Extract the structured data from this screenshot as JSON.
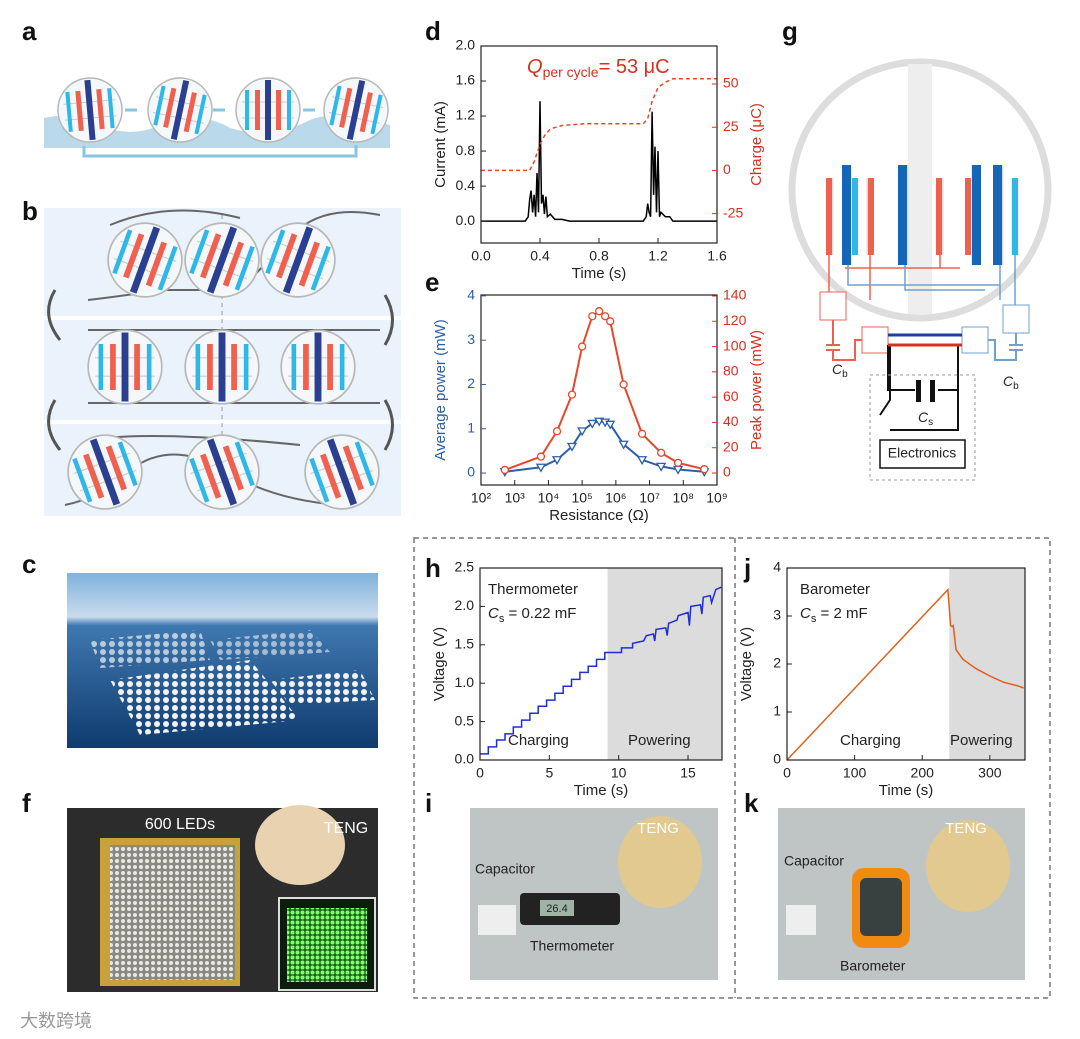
{
  "panel_labels": [
    "a",
    "b",
    "c",
    "d",
    "e",
    "f",
    "g",
    "h",
    "i",
    "j",
    "k"
  ],
  "panel_g": {
    "labels": [
      {
        "main": "C",
        "sub": "b"
      },
      {
        "main": "C",
        "sub": "b"
      },
      {
        "main": "C",
        "sub": "s"
      }
    ],
    "box": "Electronics"
  },
  "panel_f": {
    "leds": "600 LEDs",
    "teng": "TENG"
  },
  "panel_i": {
    "teng": "TENG",
    "capacitor": "Capacitor",
    "device": "Thermometer",
    "display": "26.4"
  },
  "panel_k": {
    "teng": "TENG",
    "capacitor": "Capacitor",
    "device": "Barometer"
  },
  "watermark": "大数跨境",
  "chart_data": [
    {
      "type": "line",
      "xlabel": "Time (s)",
      "ylabel": "Current (mA)",
      "y2label": "Charge (μC)",
      "y2_color": "#d7301f",
      "annotations": [
        {
          "text": "Q",
          "sub": "per cycle",
          "rest": "= 53 μC",
          "color": "#d7301f"
        }
      ],
      "xlim": [
        0,
        1.6
      ],
      "xticks": [
        {
          "value": 0,
          "label": "0.0"
        },
        0.4,
        0.8,
        1.2,
        1.6
      ],
      "ylim": [
        -0.25,
        2.0
      ],
      "yticks": [
        {
          "value": 0,
          "label": "0.0"
        },
        0.4,
        0.8,
        1.2,
        1.6,
        {
          "value": 2,
          "label": "2.0"
        }
      ],
      "y2lim": [
        -42,
        72
      ],
      "y2ticks": [
        -25,
        0,
        25,
        50
      ],
      "series": [
        {
          "color": "#000000",
          "x": [
            0,
            0.3,
            0.32,
            0.33,
            0.34,
            0.35,
            0.36,
            0.37,
            0.38,
            0.39,
            0.4,
            0.41,
            0.42,
            0.43,
            0.44,
            0.45,
            0.47,
            0.5,
            0.55,
            0.6,
            1.1,
            1.12,
            1.13,
            1.14,
            1.15,
            1.16,
            1.17,
            1.18,
            1.19,
            1.2,
            1.21,
            1.22,
            1.25,
            1.28,
            1.3,
            1.35,
            1.6
          ],
          "values": [
            0,
            0,
            0.05,
            0.25,
            0.35,
            0.1,
            0.3,
            0.05,
            0.55,
            0.1,
            1.37,
            0.2,
            0.3,
            0.08,
            0.28,
            0.05,
            0.08,
            0.02,
            0.02,
            0,
            0,
            0.05,
            0.2,
            0.1,
            0.05,
            1.25,
            0.3,
            0.85,
            0.1,
            0.8,
            0.05,
            0.1,
            0.05,
            0.05,
            0,
            0,
            0
          ]
        },
        {
          "color": "#e8462a",
          "axis": "y2",
          "line_style": "dashed",
          "x": [
            0,
            0.33,
            0.36,
            0.4,
            0.43,
            0.47,
            0.55,
            0.7,
            1.1,
            1.13,
            1.16,
            1.2,
            1.25,
            1.3,
            1.6
          ],
          "values": [
            0,
            0,
            5,
            15,
            20,
            24,
            26,
            27,
            27,
            30,
            40,
            48,
            51,
            53,
            53
          ]
        }
      ]
    },
    {
      "type": "line",
      "xscale": "log",
      "xlabel": "Resistance (Ω)",
      "ylabel": "Average power (mW)",
      "y2label": "Peak power (mW)",
      "y_color": "#2b5fa8",
      "y2_color": "#d7301f",
      "xlim": [
        100,
        1000000000
      ],
      "xticks": [
        {
          "value": 100,
          "label": "10²"
        },
        {
          "value": 1000,
          "label": "10³"
        },
        {
          "value": 10000,
          "label": "10⁴"
        },
        {
          "value": 100000,
          "label": "10⁵"
        },
        {
          "value": 1000000,
          "label": "10⁶"
        },
        {
          "value": 10000000,
          "label": "10⁷"
        },
        {
          "value": 100000000,
          "label": "10⁸"
        },
        {
          "value": 1000000000,
          "label": "10⁹"
        }
      ],
      "ylim": [
        -0.27,
        4.02
      ],
      "yticks": [
        0,
        1,
        2,
        3,
        4
      ],
      "y2lim": [
        -9.5,
        140.8
      ],
      "y2ticks": [
        0,
        20,
        40,
        60,
        80,
        100,
        120,
        140
      ],
      "series": [
        {
          "color": "#2b5fa8",
          "marker": "triangle",
          "x": [
            510,
            6000,
            18000,
            50000,
            100000,
            200000,
            320000,
            480000,
            680000,
            1700000,
            6000000,
            22000000,
            70000000,
            420000000
          ],
          "values": [
            0.03,
            0.13,
            0.3,
            0.6,
            0.95,
            1.12,
            1.17,
            1.15,
            1.1,
            0.65,
            0.3,
            0.15,
            0.08,
            0.03
          ]
        },
        {
          "color": "#e8462a",
          "marker": "circle",
          "axis": "y2",
          "x": [
            510,
            6000,
            18000,
            50000,
            100000,
            200000,
            320000,
            480000,
            680000,
            1700000,
            6000000,
            22000000,
            70000000,
            420000000
          ],
          "values": [
            2.4,
            13,
            33,
            62,
            100,
            124,
            128,
            124,
            120,
            70,
            31,
            16,
            8,
            3
          ]
        }
      ]
    },
    {
      "type": "line",
      "xlabel": "Time (s)",
      "ylabel": "Voltage (V)",
      "shade_x": [
        9.2,
        17.45
      ],
      "annotations": [
        {
          "text": "Thermometer"
        },
        {
          "text": "C",
          "sub": "s",
          "rest": " = 0.22 mF"
        },
        {
          "text": "Charging"
        },
        {
          "text": "Powering"
        }
      ],
      "xlim": [
        0,
        17.45
      ],
      "xticks": [
        0,
        5,
        10,
        15
      ],
      "ylim": [
        0,
        2.5
      ],
      "yticks": [
        {
          "value": 0,
          "label": "0.0"
        },
        0.5,
        {
          "value": 1,
          "label": "1.0"
        },
        1.5,
        {
          "value": 2,
          "label": "2.0"
        },
        2.5
      ],
      "series": [
        {
          "color": "#1f2fd0",
          "x": [
            0,
            0.6,
            0.6,
            1.2,
            1.2,
            1.8,
            1.8,
            2.4,
            2.4,
            3.0,
            3.0,
            3.6,
            3.6,
            4.2,
            4.2,
            4.8,
            4.8,
            5.4,
            5.4,
            6.0,
            6.0,
            6.6,
            6.6,
            7.2,
            7.2,
            7.8,
            7.8,
            8.4,
            8.4,
            9.0,
            9.0,
            9.6,
            10.2,
            10.2,
            11.0,
            11.0,
            11.8,
            12.0,
            12.5,
            12.6,
            12.7,
            13.4,
            13.5,
            13.6,
            14.2,
            14.3,
            15.0,
            15.1,
            15.2,
            15.9,
            16.0,
            16.1,
            16.6,
            16.7,
            17.0,
            17.4
          ],
          "values": [
            0.08,
            0.08,
            0.17,
            0.17,
            0.26,
            0.26,
            0.34,
            0.34,
            0.43,
            0.43,
            0.52,
            0.52,
            0.61,
            0.61,
            0.7,
            0.7,
            0.78,
            0.78,
            0.87,
            0.87,
            0.96,
            0.96,
            1.05,
            1.05,
            1.14,
            1.14,
            1.22,
            1.22,
            1.31,
            1.31,
            1.4,
            1.4,
            1.4,
            1.46,
            1.46,
            1.52,
            1.55,
            1.62,
            1.64,
            1.55,
            1.7,
            1.72,
            1.62,
            1.78,
            1.82,
            1.88,
            1.92,
            1.75,
            2.0,
            2.02,
            1.9,
            2.12,
            2.14,
            2.05,
            2.22,
            2.25
          ]
        }
      ]
    },
    {
      "type": "line",
      "xlabel": "Time (s)",
      "ylabel": "Voltage (V)",
      "shade_x": [
        240,
        352
      ],
      "annotations": [
        {
          "text": "Barometer"
        },
        {
          "text": "C",
          "sub": "s",
          "rest": " = 2 mF"
        },
        {
          "text": "Charging"
        },
        {
          "text": "Powering"
        }
      ],
      "xlim": [
        0,
        352
      ],
      "xticks": [
        0,
        100,
        200,
        300
      ],
      "ylim": [
        0,
        4
      ],
      "yticks": [
        0,
        1,
        2,
        3,
        4
      ],
      "series": [
        {
          "color": "#e0601c",
          "x": [
            0,
            238,
            242,
            244,
            246,
            250,
            260,
            280,
            300,
            320,
            340,
            350
          ],
          "values": [
            0,
            3.55,
            2.8,
            2.78,
            2.8,
            2.3,
            2.1,
            1.9,
            1.75,
            1.62,
            1.55,
            1.5
          ]
        }
      ]
    }
  ]
}
